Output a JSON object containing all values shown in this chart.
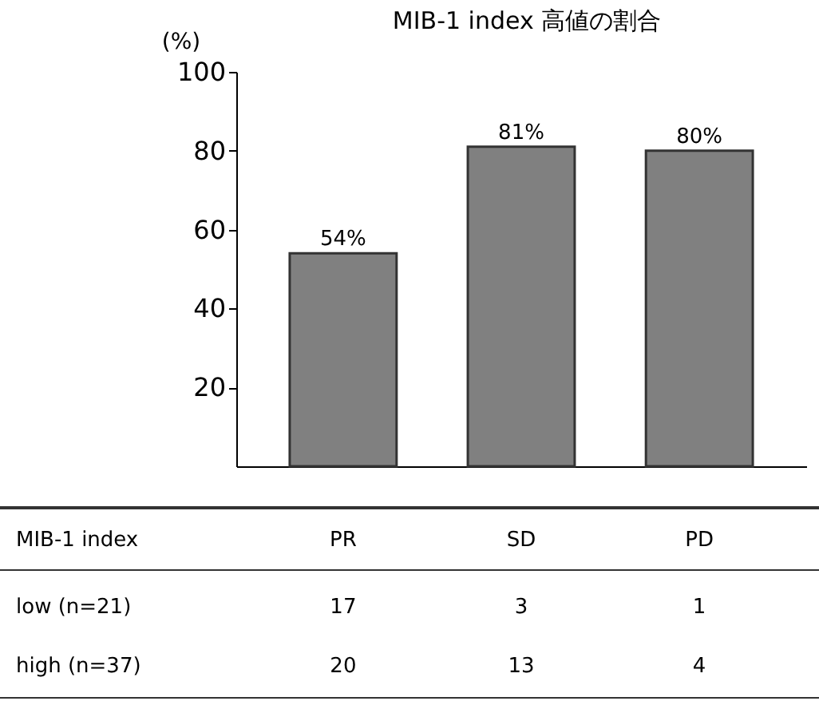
{
  "chart_data": {
    "type": "bar",
    "title": "MIB-1 index 高値の割合",
    "ylabel": "(%)",
    "categories": [
      "PR",
      "SD",
      "PD"
    ],
    "values": [
      54,
      81,
      80
    ],
    "color": "#808080",
    "value_labels": [
      "54%",
      "81%",
      "80%"
    ],
    "ylim": [
      0,
      100
    ],
    "yticks": [
      20,
      40,
      60,
      80,
      100
    ],
    "grid": false,
    "annotations": [
      "MIB-1 index",
      "low (n=21)",
      "17",
      "3",
      "1",
      "high (n=37)",
      "20",
      "13",
      "4"
    ]
  }
}
